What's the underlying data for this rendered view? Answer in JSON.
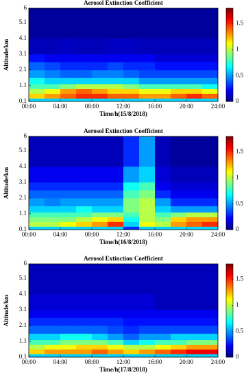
{
  "chart_data": [
    {
      "type": "heatmap",
      "title": "Aerosol Extinction Coefficient",
      "x_label": "Time/h(15/8/2018)",
      "y_label": "Altitude/km",
      "xlim": [
        0,
        24
      ],
      "ylim": [
        0.1,
        6
      ],
      "xticks": [
        {
          "value": 0,
          "label": "00:00"
        },
        {
          "value": 4,
          "label": "04:00"
        },
        {
          "value": 8,
          "label": "08:00"
        },
        {
          "value": 12,
          "label": "12:00"
        },
        {
          "value": 16,
          "label": "16:00"
        },
        {
          "value": 20,
          "label": "20:00"
        },
        {
          "value": 24,
          "label": "24:00"
        }
      ],
      "yticks": [
        0.1,
        1.1,
        2.1,
        3.1,
        4.1,
        5.1,
        6
      ],
      "clim": [
        0,
        1.8
      ],
      "cticks": [
        0,
        0.5,
        1,
        1.5
      ],
      "x_bins": [
        0,
        2,
        4,
        6,
        8,
        10,
        12,
        14,
        16,
        18,
        20,
        22,
        24
      ],
      "y_bins": [
        0.1,
        0.3,
        0.6,
        0.9,
        1.2,
        1.6,
        2.1,
        2.6,
        3.1,
        4.1,
        6
      ],
      "values": [
        [
          0.6,
          0.6,
          0.6,
          0.6,
          0.6,
          0.6,
          0.6,
          0.6,
          0.6,
          0.6,
          0.6,
          0.6
        ],
        [
          1.2,
          1.3,
          1.4,
          1.5,
          1.5,
          1.4,
          1.4,
          1.3,
          1.3,
          1.4,
          1.5,
          1.4
        ],
        [
          1.0,
          1.1,
          1.3,
          1.4,
          1.3,
          1.2,
          1.2,
          1.1,
          1.1,
          1.2,
          1.2,
          1.1
        ],
        [
          0.8,
          0.8,
          0.9,
          1.0,
          1.0,
          1.0,
          0.9,
          0.8,
          0.8,
          0.8,
          0.8,
          0.7
        ],
        [
          0.7,
          0.6,
          0.6,
          0.6,
          0.6,
          0.6,
          0.6,
          0.5,
          0.5,
          0.5,
          0.5,
          0.5
        ],
        [
          0.5,
          0.45,
          0.4,
          0.4,
          0.45,
          0.45,
          0.4,
          0.35,
          0.35,
          0.35,
          0.35,
          0.35
        ],
        [
          0.4,
          0.35,
          0.3,
          0.3,
          0.3,
          0.35,
          0.3,
          0.3,
          0.25,
          0.25,
          0.25,
          0.25
        ],
        [
          0.25,
          0.2,
          0.2,
          0.2,
          0.2,
          0.2,
          0.2,
          0.2,
          0.15,
          0.15,
          0.15,
          0.15
        ],
        [
          0.1,
          0.1,
          0.12,
          0.1,
          0.1,
          0.12,
          0.12,
          0.1,
          0.1,
          0.1,
          0.1,
          0.1
        ],
        [
          0.05,
          0.05,
          0.05,
          0.05,
          0.05,
          0.05,
          0.05,
          0.05,
          0.05,
          0.05,
          0.05,
          0.05
        ]
      ]
    },
    {
      "type": "heatmap",
      "title": "Aerosol Extinction Coefficient",
      "x_label": "Time/h(16/8/2018)",
      "y_label": "Altitude/km",
      "xlim": [
        0,
        24
      ],
      "ylim": [
        0.1,
        6
      ],
      "xticks": [
        {
          "value": 0,
          "label": "00:00"
        },
        {
          "value": 4,
          "label": "04:00"
        },
        {
          "value": 8,
          "label": "08:00"
        },
        {
          "value": 12,
          "label": "12:00"
        },
        {
          "value": 16,
          "label": "16:00"
        },
        {
          "value": 20,
          "label": "20:00"
        },
        {
          "value": 24,
          "label": "24:00"
        }
      ],
      "yticks": [
        0.1,
        1.1,
        2.1,
        3.1,
        4.1,
        5.1,
        6
      ],
      "clim": [
        0,
        1.8
      ],
      "cticks": [
        0,
        0.5,
        1,
        1.5
      ],
      "x_bins": [
        0,
        2,
        4,
        6,
        8,
        10,
        12,
        14,
        16,
        18,
        20,
        22,
        24
      ],
      "y_bins": [
        0.1,
        0.3,
        0.6,
        0.9,
        1.2,
        1.6,
        2.1,
        2.6,
        3.1,
        4.1,
        6
      ],
      "values": [
        [
          0.6,
          0.6,
          0.6,
          0.6,
          0.6,
          0.6,
          0.3,
          0.6,
          0.6,
          0.6,
          0.6,
          0.6
        ],
        [
          1.0,
          1.0,
          1.1,
          1.2,
          1.3,
          1.5,
          0.6,
          1.1,
          1.0,
          1.3,
          1.4,
          1.5
        ],
        [
          0.9,
          0.9,
          0.9,
          1.0,
          1.1,
          1.2,
          0.7,
          1.0,
          0.9,
          1.2,
          1.3,
          1.3
        ],
        [
          0.8,
          0.8,
          0.8,
          0.8,
          0.9,
          0.9,
          0.8,
          1.0,
          0.8,
          0.9,
          1.0,
          1.0
        ],
        [
          0.6,
          0.6,
          0.6,
          0.7,
          0.6,
          0.6,
          0.9,
          1.0,
          0.6,
          0.5,
          0.5,
          0.5
        ],
        [
          0.5,
          0.45,
          0.5,
          0.5,
          0.5,
          0.5,
          0.9,
          1.0,
          0.5,
          0.3,
          0.3,
          0.3
        ],
        [
          0.4,
          0.4,
          0.4,
          0.4,
          0.4,
          0.4,
          0.8,
          0.9,
          0.3,
          0.2,
          0.2,
          0.2
        ],
        [
          0.3,
          0.3,
          0.3,
          0.3,
          0.3,
          0.3,
          0.7,
          0.8,
          0.2,
          0.15,
          0.15,
          0.15
        ],
        [
          0.2,
          0.2,
          0.2,
          0.2,
          0.2,
          0.2,
          0.5,
          0.6,
          0.15,
          0.1,
          0.1,
          0.1
        ],
        [
          0.1,
          0.1,
          0.1,
          0.1,
          0.1,
          0.1,
          0.3,
          0.5,
          0.1,
          0.05,
          0.05,
          0.05
        ]
      ]
    },
    {
      "type": "heatmap",
      "title": "Aerosol Extinction Coefficient",
      "x_label": "Time/h(17/8/2018)",
      "y_label": "Altitude/km",
      "xlim": [
        0,
        24
      ],
      "ylim": [
        0.1,
        6
      ],
      "xticks": [
        {
          "value": 0,
          "label": "00:00"
        },
        {
          "value": 4,
          "label": "04:00"
        },
        {
          "value": 8,
          "label": "08:00"
        },
        {
          "value": 12,
          "label": "12:00"
        },
        {
          "value": 16,
          "label": "16:00"
        },
        {
          "value": 20,
          "label": "20:00"
        },
        {
          "value": 24,
          "label": "24:00"
        }
      ],
      "yticks": [
        0.1,
        1.1,
        2.1,
        3.1,
        4.1,
        5.1,
        6
      ],
      "clim": [
        0,
        1.8
      ],
      "cticks": [
        0,
        0.5,
        1,
        1.5
      ],
      "x_bins": [
        0,
        2,
        4,
        6,
        8,
        10,
        12,
        14,
        16,
        18,
        20,
        22,
        24
      ],
      "y_bins": [
        0.1,
        0.3,
        0.6,
        0.9,
        1.2,
        1.6,
        2.1,
        2.6,
        3.1,
        4.1,
        6
      ],
      "values": [
        [
          0.6,
          0.6,
          0.6,
          0.6,
          0.6,
          0.6,
          0.6,
          0.6,
          0.6,
          0.6,
          0.6,
          0.6
        ],
        [
          1.2,
          1.3,
          1.3,
          1.3,
          1.4,
          1.3,
          1.2,
          1.3,
          1.4,
          1.5,
          1.6,
          1.6
        ],
        [
          1.0,
          1.1,
          1.1,
          1.2,
          1.2,
          1.1,
          1.0,
          1.0,
          1.1,
          1.2,
          1.3,
          1.3
        ],
        [
          0.8,
          0.8,
          0.9,
          0.9,
          0.9,
          0.8,
          0.6,
          0.7,
          0.8,
          0.8,
          0.9,
          0.9
        ],
        [
          0.6,
          0.6,
          0.7,
          0.7,
          0.6,
          0.5,
          0.4,
          0.5,
          0.5,
          0.6,
          0.6,
          0.6
        ],
        [
          0.4,
          0.4,
          0.4,
          0.4,
          0.4,
          0.35,
          0.3,
          0.35,
          0.35,
          0.35,
          0.35,
          0.35
        ],
        [
          0.3,
          0.3,
          0.3,
          0.3,
          0.3,
          0.3,
          0.25,
          0.25,
          0.25,
          0.25,
          0.25,
          0.25
        ],
        [
          0.2,
          0.2,
          0.2,
          0.2,
          0.2,
          0.2,
          0.2,
          0.2,
          0.2,
          0.2,
          0.2,
          0.2
        ],
        [
          0.15,
          0.15,
          0.15,
          0.15,
          0.15,
          0.15,
          0.15,
          0.15,
          0.1,
          0.1,
          0.1,
          0.1
        ],
        [
          0.1,
          0.1,
          0.1,
          0.1,
          0.1,
          0.1,
          0.1,
          0.1,
          0.1,
          0.1,
          0.1,
          0.1
        ]
      ]
    }
  ]
}
